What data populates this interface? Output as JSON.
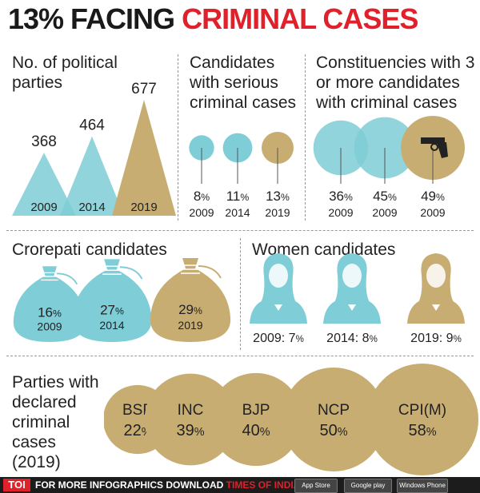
{
  "title": {
    "part1": "13% FACING",
    "part2": "CRIMINAL CASES"
  },
  "colors": {
    "blue": "#7fcdd6",
    "gold": "#c8ad72",
    "red": "#e0202a",
    "dark": "#1c1c1c"
  },
  "panels": {
    "parties": {
      "heading": "No. of political parties"
    },
    "serious": {
      "heading": "Candidates with serious criminal cases"
    },
    "constituencies": {
      "heading": "Constituencies with 3 or more candidates with criminal cases",
      "icon": "gun-icon"
    },
    "crorepati": {
      "heading": "Crorepati candidates",
      "icon": "money-bag-icon"
    },
    "women": {
      "heading": "Women candidates",
      "icon": "woman-icon"
    },
    "party_cases": {
      "heading": "Parties with declared criminal cases (2019)"
    }
  },
  "chart_data": [
    {
      "type": "bar",
      "title": "No. of political parties",
      "categories": [
        "2009",
        "2014",
        "2019"
      ],
      "values": [
        368,
        464,
        677
      ],
      "value_labels": [
        "368",
        "464",
        "677"
      ]
    },
    {
      "type": "scatter",
      "title": "Candidates with serious criminal cases",
      "categories": [
        "2009",
        "2014",
        "2019"
      ],
      "values": [
        8,
        11,
        13
      ],
      "value_labels": [
        "8%",
        "11%",
        "13%"
      ]
    },
    {
      "type": "scatter",
      "title": "Constituencies with 3 or more candidates with criminal cases",
      "categories": [
        "2009",
        "2009",
        "2009"
      ],
      "values": [
        36,
        45,
        49
      ],
      "value_labels": [
        "36%",
        "45%",
        "49%"
      ]
    },
    {
      "type": "bar",
      "title": "Crorepati candidates",
      "categories": [
        "2009",
        "2014",
        "2019"
      ],
      "values": [
        16,
        27,
        29
      ],
      "value_labels": [
        "16%",
        "27%",
        "29%"
      ]
    },
    {
      "type": "bar",
      "title": "Women candidates",
      "categories": [
        "2009",
        "2014",
        "2019"
      ],
      "values": [
        7,
        8,
        9
      ],
      "labels": [
        "2009: 7%",
        "2014: 8%",
        "2019: 9%"
      ]
    },
    {
      "type": "bar",
      "title": "Parties with declared criminal cases (2019)",
      "categories": [
        "BSP",
        "INC",
        "BJP",
        "NCP",
        "CPI(M)"
      ],
      "values": [
        22,
        39,
        40,
        50,
        58
      ],
      "value_labels": [
        "22%",
        "39%",
        "40%",
        "50%",
        "58%"
      ]
    }
  ],
  "footer": {
    "brand": "TOI",
    "text": "FOR MORE  INFOGRAPHICS DOWNLOAD",
    "app_name": "TIMES OF INDIA APP",
    "stores": [
      "App Store",
      "Google play",
      "Windows Phone"
    ]
  }
}
